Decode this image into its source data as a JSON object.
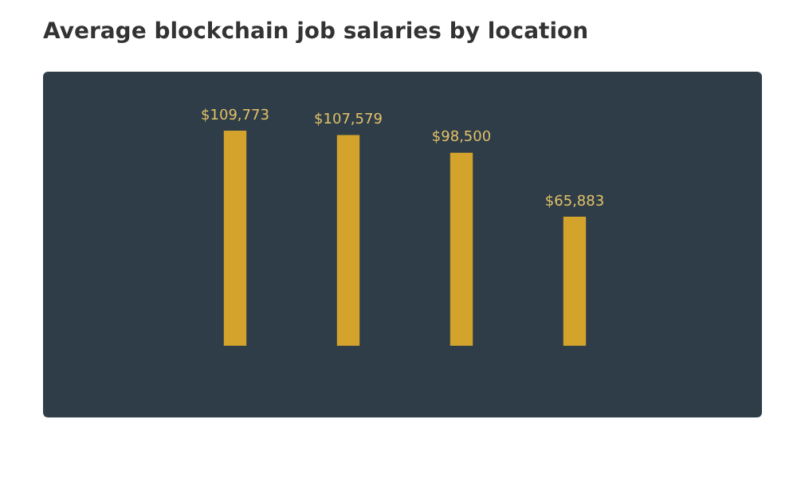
{
  "chart_data": {
    "type": "bar",
    "title": "Average blockchain job salaries by location",
    "categories": [
      null,
      null,
      null,
      null
    ],
    "values": [
      109773,
      107579,
      98500,
      65883
    ],
    "value_labels": [
      "$109,773",
      "$107,579",
      "$98,500",
      "$65,883"
    ],
    "color": "#d4a32c"
  }
}
